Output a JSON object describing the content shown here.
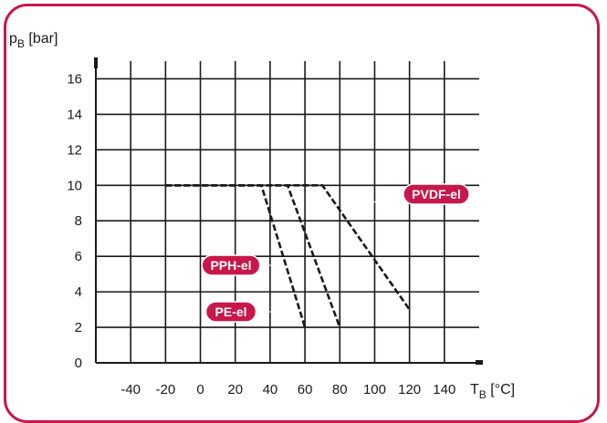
{
  "chart_data": {
    "type": "line",
    "xlabel": {
      "main": "T",
      "sub": "B",
      "unit": " [°C]"
    },
    "ylabel": {
      "main": "p",
      "sub": "B",
      "unit": " [bar]"
    },
    "xlim": [
      -60,
      160
    ],
    "ylim": [
      0,
      17
    ],
    "grid": true,
    "x_tick_step": 20,
    "y_tick_step": 2,
    "x_ticks": [
      -40,
      -20,
      0,
      20,
      40,
      60,
      80,
      100,
      120,
      140
    ],
    "y_ticks": [
      0,
      2,
      4,
      6,
      8,
      10,
      12,
      14,
      16
    ],
    "series": [
      {
        "name": "PVDF-el",
        "points": [
          [
            -20,
            10
          ],
          [
            70,
            10
          ],
          [
            120,
            3
          ]
        ]
      },
      {
        "name": "PPH-el",
        "points": [
          [
            -20,
            10
          ],
          [
            50,
            10
          ],
          [
            80,
            2
          ]
        ]
      },
      {
        "name": "PE-el",
        "points": [
          [
            -20,
            10
          ],
          [
            35,
            10
          ],
          [
            60,
            2
          ]
        ]
      }
    ],
    "line_color": "#1a1a1a",
    "label_color": "#c8174a"
  }
}
